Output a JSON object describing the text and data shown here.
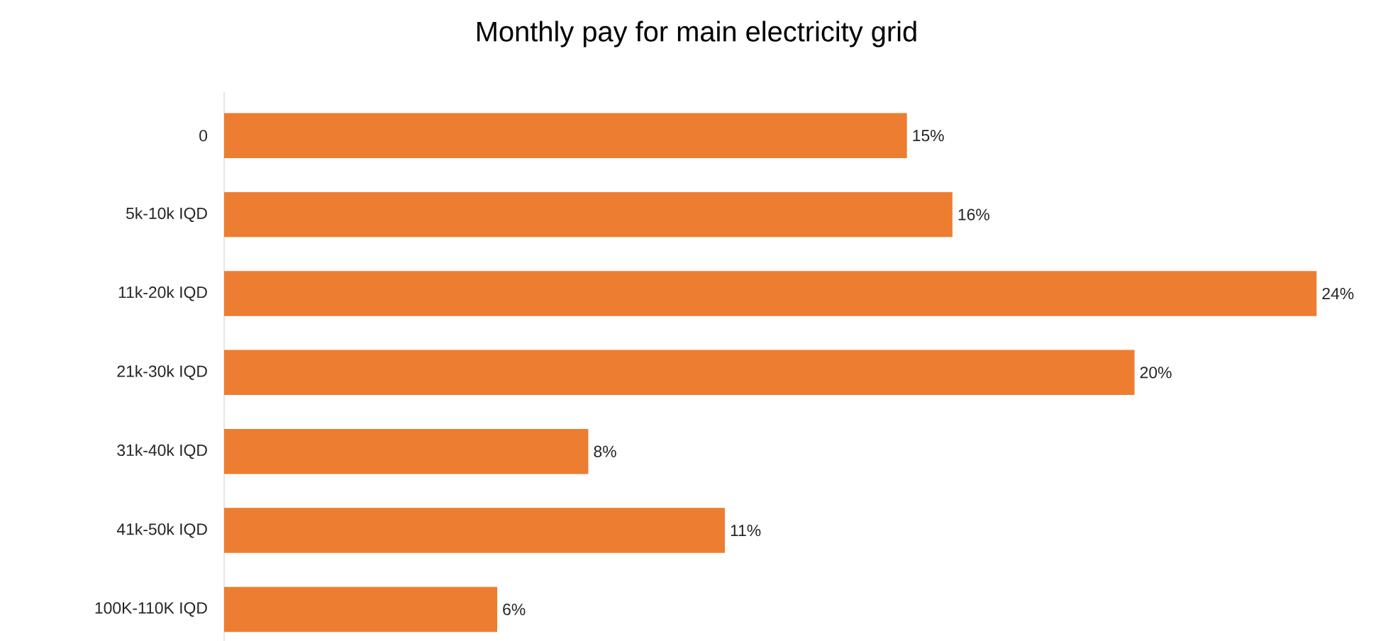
{
  "chart_data": {
    "type": "bar",
    "orientation": "horizontal",
    "title": "Monthly pay for main electricity grid",
    "categories": [
      "0",
      "5k-10k IQD",
      "11k-20k IQD",
      "21k-30k IQD",
      "31k-40k IQD",
      "41k-50k IQD",
      "100K-110K IQD"
    ],
    "values": [
      15,
      16,
      24,
      20,
      8,
      11,
      6
    ],
    "value_labels": [
      "15%",
      "16%",
      "24%",
      "20%",
      "8%",
      "11%",
      "6%"
    ],
    "color": "#ed7d31"
  }
}
